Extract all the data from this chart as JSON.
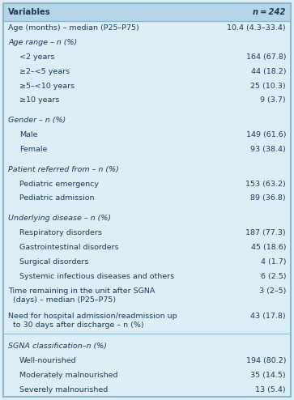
{
  "header_bg": "#b8d4e8",
  "header_text_color": "#1a3a5c",
  "body_bg": "#ddeef6",
  "body_text_color": "#1a3a5c",
  "border_color": "#8ab8d0",
  "col1_header": "Variables",
  "col2_header": "n = 242",
  "rows": [
    {
      "label": "Age (months) – median (P25–P75)",
      "value": "10.4 (4.3–33.4)",
      "indent": 0,
      "italic": false,
      "multiline": false
    },
    {
      "label": "Age range – n (%)",
      "value": "",
      "indent": 0,
      "italic": true,
      "multiline": false
    },
    {
      "label": "<2 years",
      "value": "164 (67.8)",
      "indent": 1,
      "italic": false,
      "multiline": false
    },
    {
      "label": "≥2–<5 years",
      "value": "44 (18.2)",
      "indent": 1,
      "italic": false,
      "multiline": false
    },
    {
      "label": "≥5–<10 years",
      "value": "25 (10.3)",
      "indent": 1,
      "italic": false,
      "multiline": false
    },
    {
      "label": "≥10 years",
      "value": "9 (3.7)",
      "indent": 1,
      "italic": false,
      "multiline": false
    },
    {
      "label": "",
      "value": "",
      "indent": 0,
      "italic": false,
      "multiline": false
    },
    {
      "label": "Gender – n (%)",
      "value": "",
      "indent": 0,
      "italic": true,
      "multiline": false
    },
    {
      "label": "Male",
      "value": "149 (61.6)",
      "indent": 1,
      "italic": false,
      "multiline": false
    },
    {
      "label": "Female",
      "value": "93 (38.4)",
      "indent": 1,
      "italic": false,
      "multiline": false
    },
    {
      "label": "",
      "value": "",
      "indent": 0,
      "italic": false,
      "multiline": false
    },
    {
      "label": "Patient referred from – n (%)",
      "value": "",
      "indent": 0,
      "italic": true,
      "multiline": false
    },
    {
      "label": "Pediatric emergency",
      "value": "153 (63.2)",
      "indent": 1,
      "italic": false,
      "multiline": false
    },
    {
      "label": "Pediatric admission",
      "value": "89 (36.8)",
      "indent": 1,
      "italic": false,
      "multiline": false
    },
    {
      "label": "",
      "value": "",
      "indent": 0,
      "italic": false,
      "multiline": false
    },
    {
      "label": "Underlying disease – n (%)",
      "value": "",
      "indent": 0,
      "italic": true,
      "multiline": false
    },
    {
      "label": "Respiratory disorders",
      "value": "187 (77.3)",
      "indent": 1,
      "italic": false,
      "multiline": false
    },
    {
      "label": "Gastrointestinal disorders",
      "value": "45 (18.6)",
      "indent": 1,
      "italic": false,
      "multiline": false
    },
    {
      "label": "Surgical disorders",
      "value": "4 (1.7)",
      "indent": 1,
      "italic": false,
      "multiline": false
    },
    {
      "label": "Systemic infectious diseases and others",
      "value": "6 (2.5)",
      "indent": 1,
      "italic": false,
      "multiline": false
    },
    {
      "label": "Time remaining in the unit after SGNA",
      "label2": "(days) – median (P25–P75)",
      "value": "3 (2–5)",
      "indent": 0,
      "italic": false,
      "multiline": true
    },
    {
      "label": "Need for hospital admission/readmission up",
      "label2": "to 30 days after discharge – n (%)",
      "value": "43 (17.8)",
      "indent": 0,
      "italic": false,
      "multiline": true
    },
    {
      "label": "",
      "value": "",
      "indent": 0,
      "italic": false,
      "multiline": false
    },
    {
      "label": "SGNA classification–n (%)",
      "value": "",
      "indent": 0,
      "italic": true,
      "multiline": false
    },
    {
      "label": "Well-nourished",
      "value": "194 (80.2)",
      "indent": 1,
      "italic": false,
      "multiline": false
    },
    {
      "label": "Moderately malnourished",
      "value": "35 (14.5)",
      "indent": 1,
      "italic": false,
      "multiline": false
    },
    {
      "label": "Severely malnourished",
      "value": "13 (5.4)",
      "indent": 1,
      "italic": false,
      "multiline": false
    }
  ],
  "fig_width": 3.63,
  "fig_height": 4.94,
  "dpi": 100,
  "font_size": 6.8,
  "header_font_size": 7.2
}
